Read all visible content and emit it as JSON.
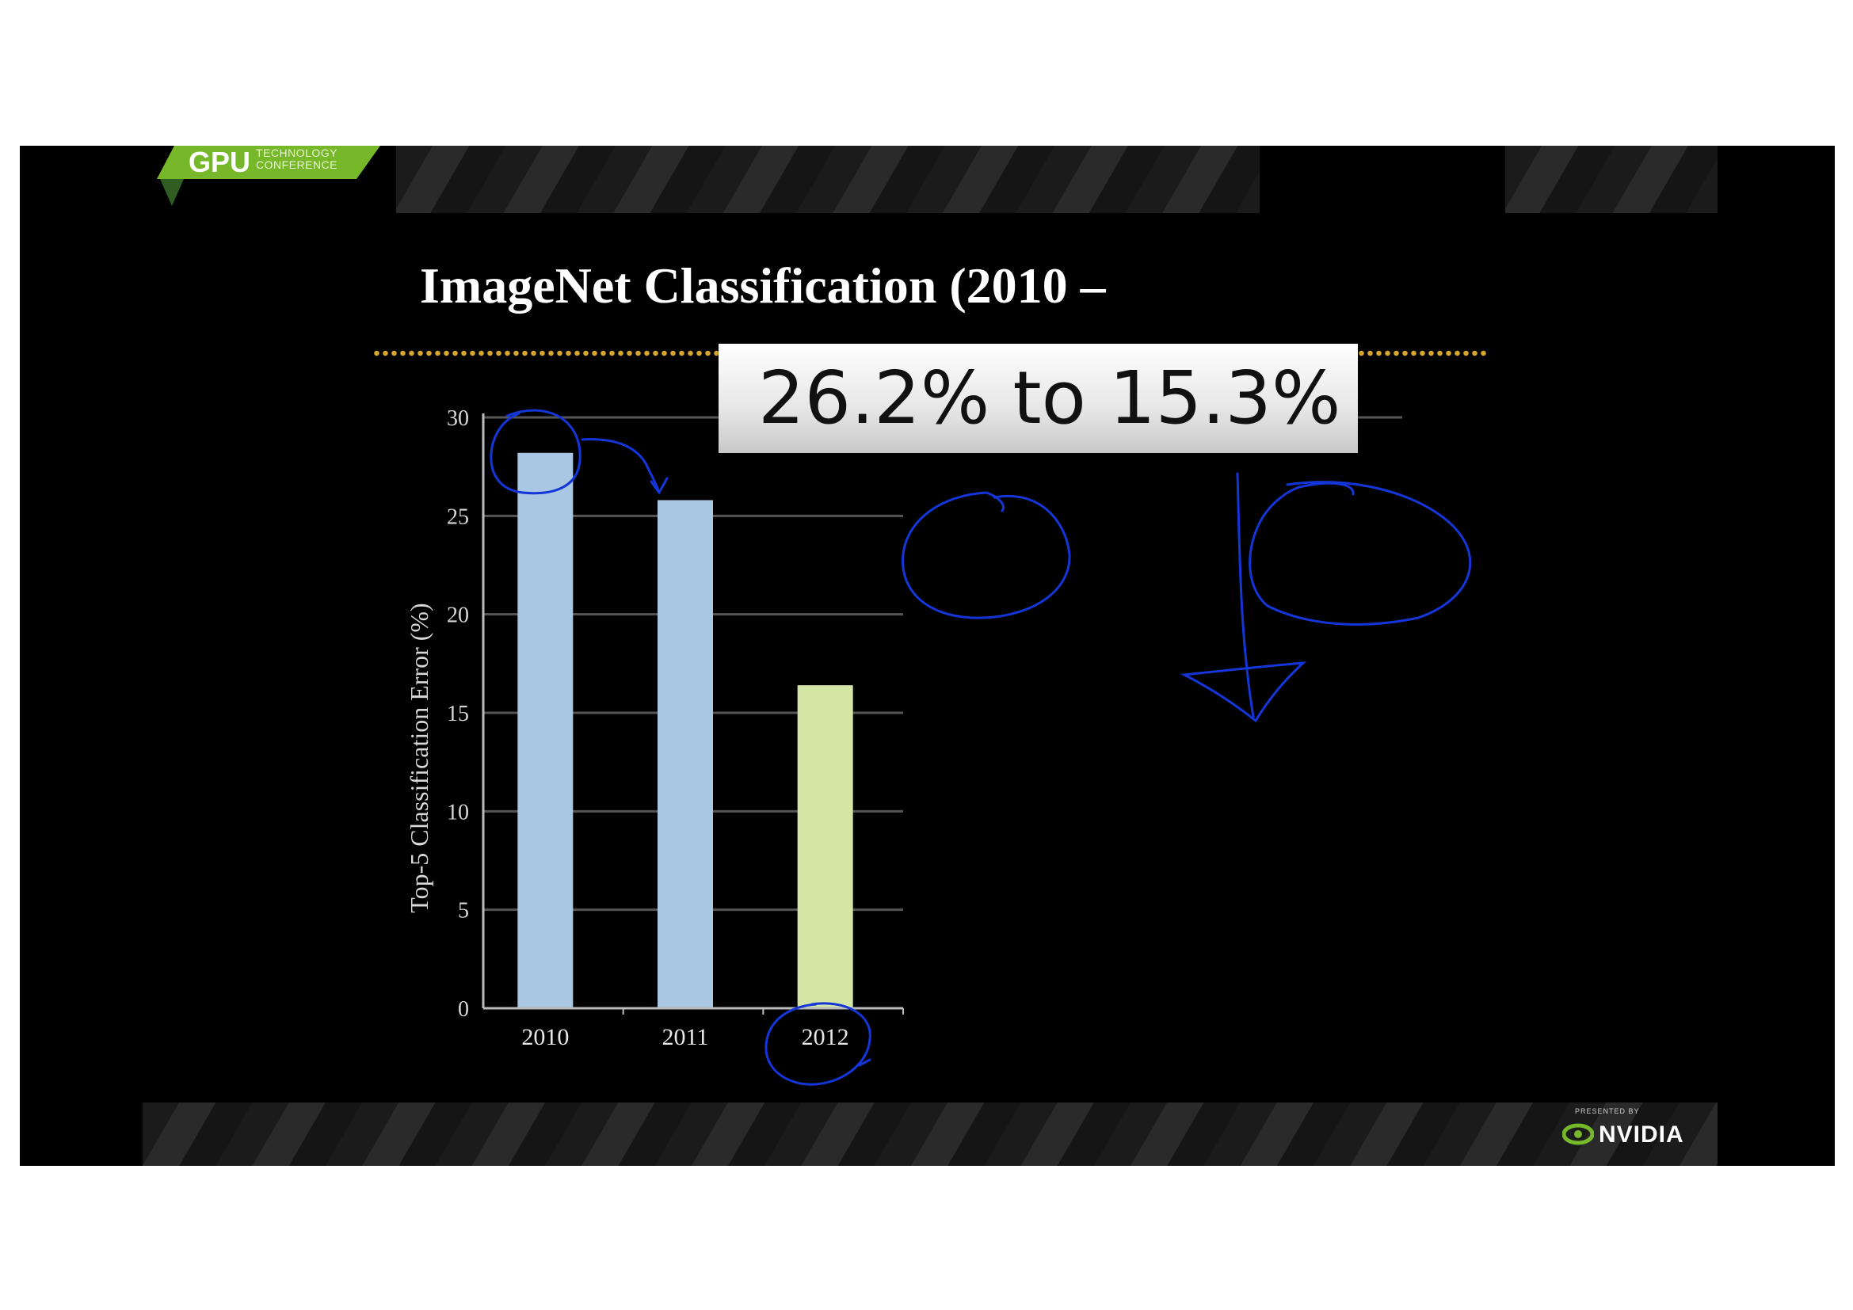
{
  "slide": {
    "title": "ImageNet Classification (2010 –",
    "conference_logo": {
      "brand": "GPU",
      "line1": "TECHNOLOGY",
      "line2": "CONFERENCE",
      "color": "#76b82a"
    },
    "presenter_logo": {
      "presented": "PRESENTED BY",
      "name": "NVIDIA",
      "icon": "nvidia-eye-icon"
    },
    "callout_text": "26.2% to 15.3%",
    "dots_color": "#d4a72c"
  },
  "chart_data": {
    "type": "bar",
    "categories": [
      "2010",
      "2011",
      "2012"
    ],
    "values": [
      28.2,
      25.8,
      16.4
    ],
    "ylabel": "Top-5 Classification Error (%)",
    "xlabel": "",
    "ylim": [
      0,
      30
    ],
    "yticks": [
      "0",
      "5",
      "10",
      "15",
      "20",
      "25",
      "30"
    ],
    "grid": true,
    "colors": [
      "#a9c6e2",
      "#a9c6e2",
      "#d3e6a6"
    ]
  }
}
